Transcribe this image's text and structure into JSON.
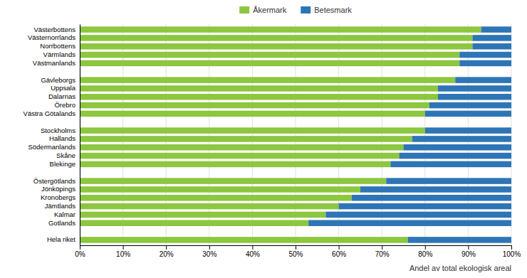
{
  "chart_data": {
    "type": "bar",
    "orientation": "horizontal",
    "stacked": true,
    "categories": [
      "Västerbottens",
      "Västernorrlands",
      "Norrbottens",
      "Värmlands",
      "Västmanlands",
      null,
      "Gävleborgs",
      "Uppsala",
      "Dalarnas",
      "Örebro",
      "Västra Götalands",
      null,
      "Stockholms",
      "Hallands",
      "Södermanlands",
      "Skåne",
      "Blekinge",
      null,
      "Östergötlands",
      "Jönköpings",
      "Kronobergs",
      "Jämtlands",
      "Kalmar",
      "Gotlands",
      null,
      "Hela riket"
    ],
    "series": [
      {
        "name": "Åkermark",
        "color": "#8DC63F",
        "values": [
          93,
          91,
          91,
          88,
          88,
          0,
          87,
          83,
          83,
          81,
          80,
          0,
          80,
          77,
          75,
          74,
          72,
          0,
          71,
          65,
          63,
          60,
          57,
          53,
          0,
          76
        ]
      },
      {
        "name": "Betesmark",
        "color": "#2E75B6",
        "values": [
          7,
          9,
          9,
          12,
          12,
          0,
          13,
          17,
          17,
          19,
          20,
          0,
          20,
          23,
          25,
          26,
          28,
          0,
          29,
          35,
          37,
          40,
          43,
          47,
          0,
          24
        ]
      }
    ],
    "xlabel": "Andel av total ekologisk areal",
    "xlim": [
      0,
      100
    ],
    "xticks": [
      {
        "value": 0,
        "label": "0%"
      },
      {
        "value": 10,
        "label": "10%"
      },
      {
        "value": 20,
        "label": "20%"
      },
      {
        "value": 30,
        "label": "30%"
      },
      {
        "value": 40,
        "label": "40%"
      },
      {
        "value": 50,
        "label": "50%"
      },
      {
        "value": 60,
        "label": "60%"
      },
      {
        "value": 70,
        "label": "70%"
      },
      {
        "value": 80,
        "label": "80%"
      },
      {
        "value": 90,
        "label": "90%"
      },
      {
        "value": 100,
        "label": "100%"
      }
    ],
    "grid": true,
    "legend": "top"
  }
}
